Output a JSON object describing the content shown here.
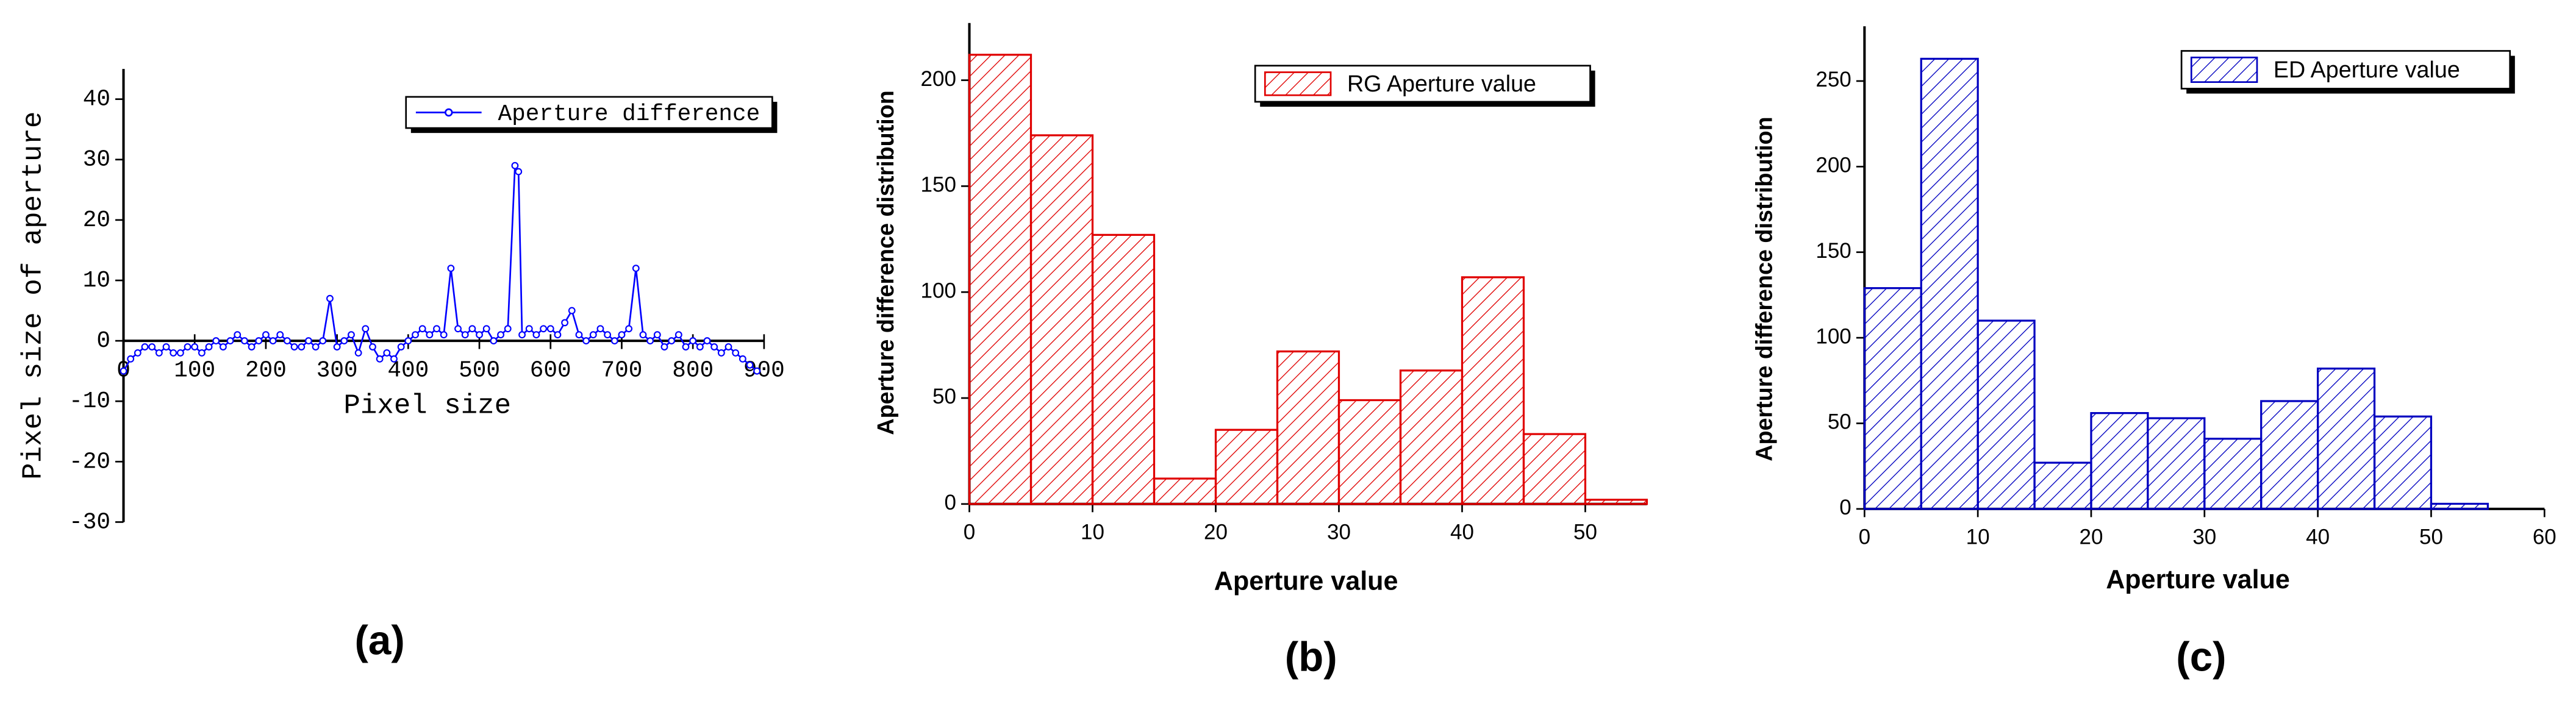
{
  "chart_data": [
    {
      "type": "line",
      "xlabel": "Pixel size",
      "ylabel": "Pixel size of aperture",
      "panel_label": "(a)",
      "x": [
        0,
        10,
        20,
        30,
        40,
        50,
        60,
        70,
        80,
        90,
        100,
        110,
        120,
        130,
        140,
        150,
        160,
        170,
        180,
        190,
        200,
        210,
        220,
        230,
        240,
        250,
        260,
        270,
        280,
        290,
        300,
        310,
        320,
        330,
        340,
        350,
        360,
        370,
        380,
        390,
        400,
        410,
        420,
        430,
        440,
        450,
        460,
        470,
        480,
        490,
        500,
        510,
        520,
        530,
        540,
        550,
        555,
        560,
        570,
        580,
        590,
        600,
        610,
        620,
        630,
        640,
        650,
        660,
        670,
        680,
        690,
        700,
        710,
        720,
        730,
        740,
        750,
        760,
        770,
        780,
        790,
        800,
        810,
        820,
        830,
        840,
        850,
        860,
        870,
        880,
        890
      ],
      "series": [
        {
          "name": "Aperture difference",
          "color": "#0000ff",
          "values": [
            -5,
            -3,
            -2,
            -1,
            -1,
            -2,
            -1,
            -2,
            -2,
            -1,
            -1,
            -2,
            -1,
            0,
            -1,
            0,
            1,
            0,
            -1,
            0,
            1,
            0,
            1,
            0,
            -1,
            -1,
            0,
            -1,
            0,
            7,
            -1,
            0,
            1,
            -2,
            2,
            -1,
            -3,
            -2,
            -3,
            -1,
            0,
            1,
            2,
            1,
            2,
            1,
            12,
            2,
            1,
            2,
            1,
            2,
            0,
            1,
            2,
            29,
            28,
            1,
            2,
            1,
            2,
            2,
            1,
            3,
            5,
            1,
            0,
            1,
            2,
            1,
            0,
            1,
            2,
            12,
            1,
            0,
            1,
            -1,
            0,
            1,
            -1,
            0,
            -1,
            0,
            -1,
            -2,
            -1,
            -2,
            -3,
            -4,
            -5
          ]
        }
      ],
      "xlim": [
        0,
        900
      ],
      "xticks": [
        0,
        100,
        200,
        300,
        400,
        500,
        600,
        700,
        800,
        900
      ],
      "ylim": [
        -30,
        45
      ],
      "yticks": [
        -30,
        -20,
        -10,
        0,
        10,
        20,
        30,
        40
      ]
    },
    {
      "type": "histogram",
      "xlabel": "Aperture value",
      "ylabel": "Aperture difference distribution",
      "panel_label": "(b)",
      "bins": [
        0,
        5,
        10,
        15,
        20,
        25,
        30,
        35,
        40,
        45,
        50,
        55
      ],
      "series": [
        {
          "name": "RG Aperture value",
          "color": "#e00000",
          "values": [
            212,
            174,
            127,
            12,
            35,
            72,
            49,
            63,
            107,
            33,
            2
          ]
        }
      ],
      "xlim": [
        0,
        55
      ],
      "xticks": [
        0,
        10,
        20,
        30,
        40,
        50
      ],
      "ylim": [
        0,
        227
      ],
      "yticks": [
        0,
        50,
        100,
        150,
        200
      ]
    },
    {
      "type": "histogram",
      "xlabel": "Aperture value",
      "ylabel": "Aperture difference distribution",
      "panel_label": "(c)",
      "bins": [
        0,
        5,
        10,
        15,
        20,
        25,
        30,
        35,
        40,
        45,
        50,
        55
      ],
      "series": [
        {
          "name": "ED Aperture value",
          "color": "#0000c0",
          "values": [
            129,
            263,
            110,
            27,
            56,
            53,
            41,
            63,
            82,
            54,
            3
          ]
        }
      ],
      "xlim": [
        0,
        60
      ],
      "xticks": [
        0,
        10,
        20,
        30,
        40,
        50,
        60
      ],
      "ylim": [
        0,
        282
      ],
      "yticks": [
        0,
        50,
        100,
        150,
        200,
        250
      ]
    }
  ]
}
